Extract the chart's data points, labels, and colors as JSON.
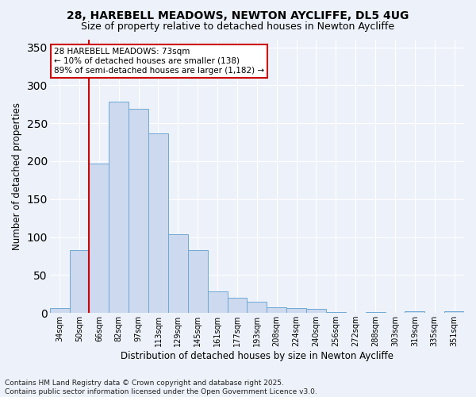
{
  "title1": "28, HAREBELL MEADOWS, NEWTON AYCLIFFE, DL5 4UG",
  "title2": "Size of property relative to detached houses in Newton Aycliffe",
  "xlabel": "Distribution of detached houses by size in Newton Aycliffe",
  "ylabel": "Number of detached properties",
  "categories": [
    "34sqm",
    "50sqm",
    "66sqm",
    "82sqm",
    "97sqm",
    "113sqm",
    "129sqm",
    "145sqm",
    "161sqm",
    "177sqm",
    "193sqm",
    "208sqm",
    "224sqm",
    "240sqm",
    "256sqm",
    "272sqm",
    "288sqm",
    "303sqm",
    "319sqm",
    "335sqm",
    "351sqm"
  ],
  "values": [
    6,
    83,
    197,
    278,
    269,
    237,
    104,
    83,
    28,
    20,
    15,
    8,
    6,
    5,
    1,
    0,
    1,
    0,
    2,
    0,
    2
  ],
  "bar_color": "#ccd9ee",
  "bar_edge_color": "#6fa8d5",
  "vline_color": "#cc0000",
  "vline_index": 2,
  "annotation_text": "28 HAREBELL MEADOWS: 73sqm\n← 10% of detached houses are smaller (138)\n89% of semi-detached houses are larger (1,182) →",
  "annotation_box_facecolor": "#ffffff",
  "annotation_box_edgecolor": "#cc0000",
  "ylim": [
    0,
    360
  ],
  "yticks": [
    0,
    50,
    100,
    150,
    200,
    250,
    300,
    350
  ],
  "footer1": "Contains HM Land Registry data © Crown copyright and database right 2025.",
  "footer2": "Contains public sector information licensed under the Open Government Licence v3.0.",
  "bg_color": "#edf2fa",
  "plot_bg_color": "#edf2fa",
  "grid_color": "#ffffff",
  "title1_fontsize": 10,
  "title2_fontsize": 9,
  "xlabel_fontsize": 8.5,
  "ylabel_fontsize": 8.5,
  "tick_fontsize": 7,
  "annotation_fontsize": 7.5,
  "footer_fontsize": 6.5
}
